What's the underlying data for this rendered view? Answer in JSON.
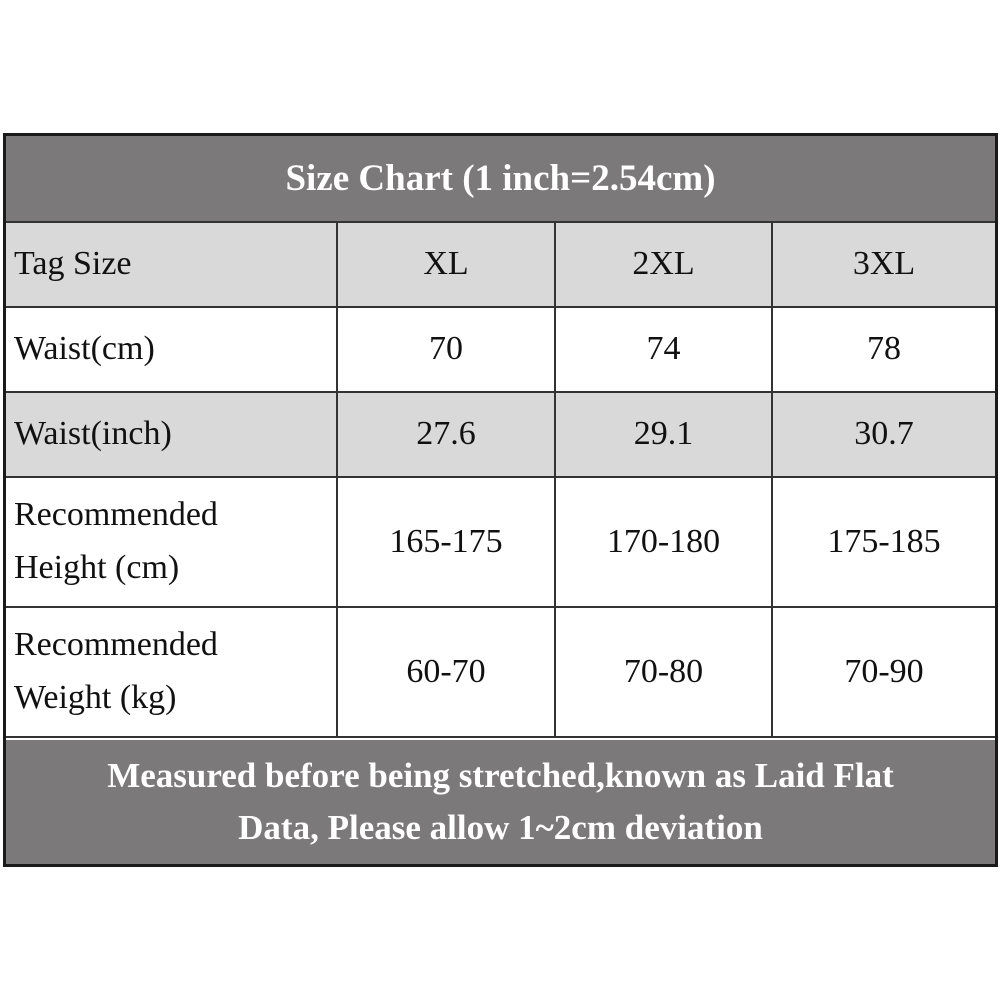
{
  "title": "Size Chart (1 inch=2.54cm)",
  "table": {
    "header": [
      "Tag Size",
      "XL",
      "2XL",
      "3XL"
    ],
    "rows": [
      [
        "Waist(cm)",
        "70",
        "74",
        "78"
      ],
      [
        "Waist(inch)",
        "27.6",
        "29.1",
        "30.7"
      ],
      [
        "Recommended\nHeight (cm)",
        "165-175",
        "170-180",
        "175-185"
      ],
      [
        "Recommended\nWeight (kg)",
        "60-70",
        "70-80",
        "70-90"
      ]
    ]
  },
  "footer": "Measured before being stretched,known as Laid Flat\nData, Please allow 1~2cm deviation"
}
